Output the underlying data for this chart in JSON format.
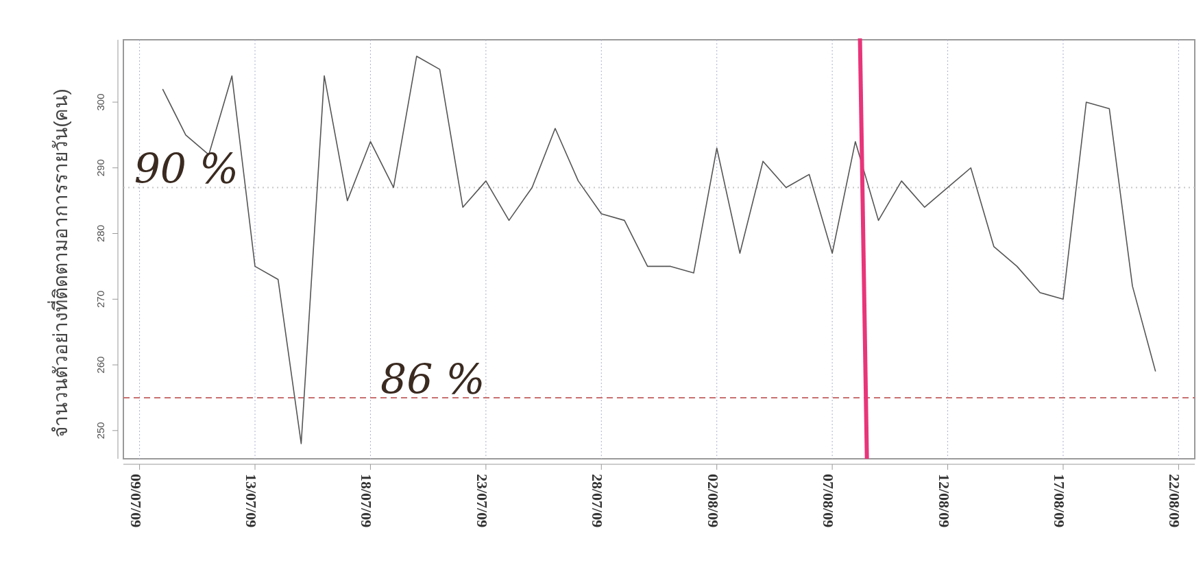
{
  "chart_data": {
    "type": "line",
    "ylabel": "จำนวนตัวอย่างที่ติดตามอาการรายวัน(คน)",
    "categories": [
      "09/07/09",
      null,
      null,
      null,
      null,
      "13/07/09",
      null,
      null,
      null,
      null,
      "18/07/09",
      null,
      null,
      null,
      null,
      "23/07/09",
      null,
      null,
      null,
      null,
      "28/07/09",
      null,
      null,
      null,
      null,
      "02/08/09",
      null,
      null,
      null,
      null,
      "07/08/09",
      null,
      null,
      null,
      null,
      "12/08/09",
      null,
      null,
      null,
      null,
      "17/08/09",
      null,
      null,
      null,
      null,
      "22/08/09"
    ],
    "series": [
      {
        "color": "#555555",
        "values": [
          null,
          302,
          295,
          292,
          304,
          275,
          273,
          248,
          304,
          285,
          294,
          287,
          307,
          305,
          284,
          288,
          282,
          287,
          296,
          288,
          283,
          282,
          275,
          275,
          274,
          293,
          277,
          291,
          287,
          289,
          277,
          294,
          282,
          288,
          284,
          287,
          290,
          278,
          275,
          271,
          270,
          300,
          299,
          272,
          259,
          null
        ]
      }
    ],
    "ylim": [
      245.7,
      309.5
    ],
    "yticks": [
      250,
      260,
      270,
      280,
      290,
      300
    ],
    "grid": "x",
    "marker": "none",
    "line_style": "solid",
    "annotations": [
      {
        "text": "90 %",
        "y": 287
      },
      {
        "text": "86 %",
        "y": 255
      }
    ],
    "ref_lines": [
      {
        "axis": "y",
        "value": 287,
        "color": "#c8c8c8",
        "line_style": "dotted"
      },
      {
        "axis": "y",
        "value": 255,
        "color": "#c87070",
        "line_style": "dashed"
      }
    ]
  }
}
